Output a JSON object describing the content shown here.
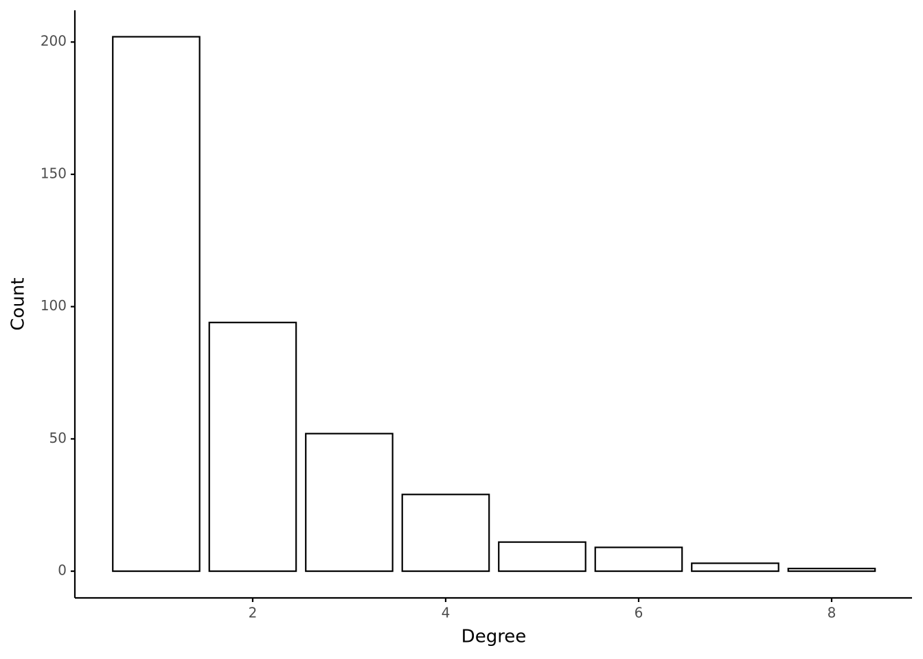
{
  "chart_data": {
    "type": "bar",
    "x_label": "Degree",
    "y_label": "Count",
    "x": [
      1,
      2,
      3,
      4,
      5,
      6,
      7,
      8
    ],
    "values": [
      202,
      94,
      52,
      29,
      11,
      9,
      3,
      1
    ],
    "fill": "#ffffff",
    "edge_color": "#000000",
    "xlim": [
      0.157,
      8.833
    ],
    "xticks": [
      2,
      4,
      6,
      8
    ],
    "ylim": [
      -10.1,
      212
    ],
    "yticks": [
      0,
      50,
      100,
      150,
      200
    ],
    "grid": false
  }
}
